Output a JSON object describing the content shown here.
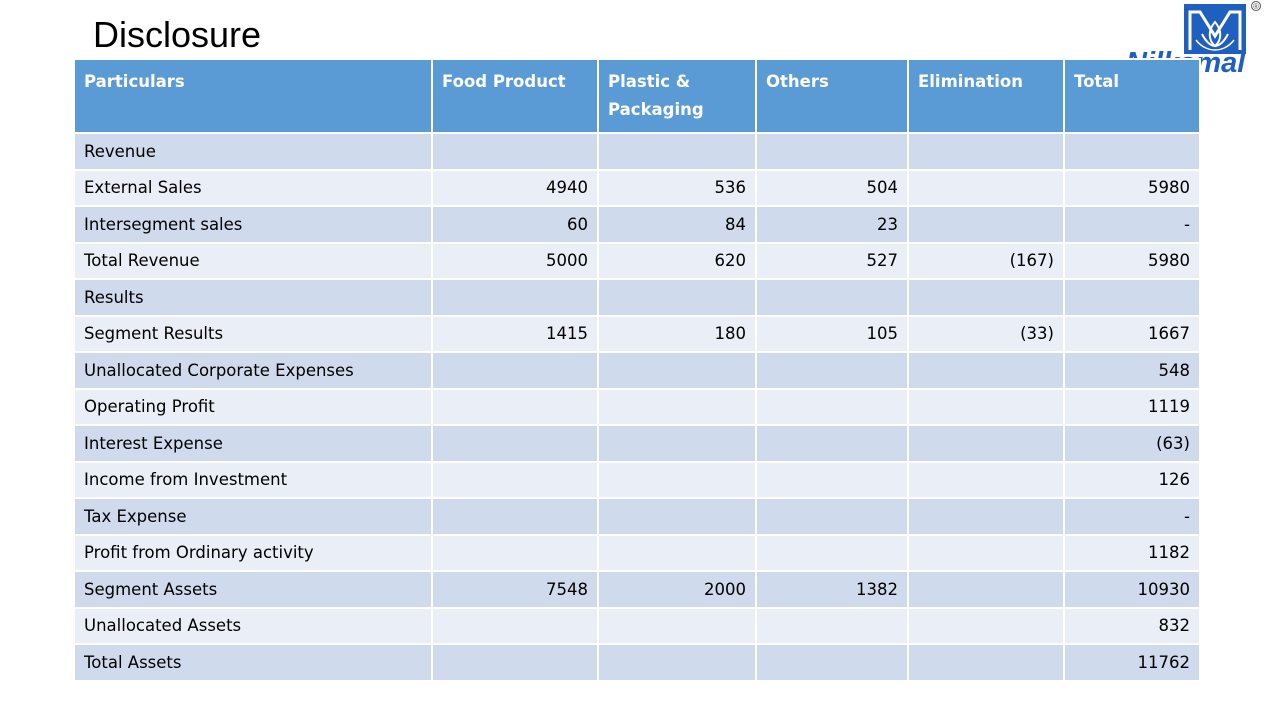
{
  "slide": {
    "title": "Disclosure"
  },
  "logo": {
    "wordmark": "Nilkamal",
    "registered_mark": "®",
    "brand_color": "#1f5fbf"
  },
  "table": {
    "header_color": "#5b9bd5",
    "row_colors": [
      "#cfdaec",
      "#e9eef7"
    ],
    "columns": [
      "Particulars",
      "Food Product",
      "Plastic & Packaging",
      "Others",
      "Elimination",
      "Total"
    ],
    "rows": [
      [
        "Revenue",
        "",
        "",
        "",
        "",
        ""
      ],
      [
        "External Sales",
        "4940",
        "536",
        "504",
        "",
        "5980"
      ],
      [
        "Intersegment sales",
        "60",
        "84",
        "23",
        "",
        "-"
      ],
      [
        "Total Revenue",
        "5000",
        "620",
        "527",
        "(167)",
        "5980"
      ],
      [
        "Results",
        "",
        "",
        "",
        "",
        ""
      ],
      [
        "Segment Results",
        "1415",
        "180",
        "105",
        "(33)",
        "1667"
      ],
      [
        "Unallocated Corporate Expenses",
        "",
        "",
        "",
        "",
        "548"
      ],
      [
        "Operating Profit",
        "",
        "",
        "",
        "",
        "1119"
      ],
      [
        "Interest Expense",
        "",
        "",
        "",
        "",
        "(63)"
      ],
      [
        "Income from Investment",
        "",
        "",
        "",
        "",
        "126"
      ],
      [
        "Tax Expense",
        "",
        "",
        "",
        "",
        "-"
      ],
      [
        "Profit from Ordinary activity",
        "",
        "",
        "",
        "",
        "1182"
      ],
      [
        "Segment Assets",
        "7548",
        "2000",
        "1382",
        "",
        "10930"
      ],
      [
        "Unallocated Assets",
        "",
        "",
        "",
        "",
        "832"
      ],
      [
        "Total Assets",
        "",
        "",
        "",
        "",
        "11762"
      ]
    ]
  }
}
